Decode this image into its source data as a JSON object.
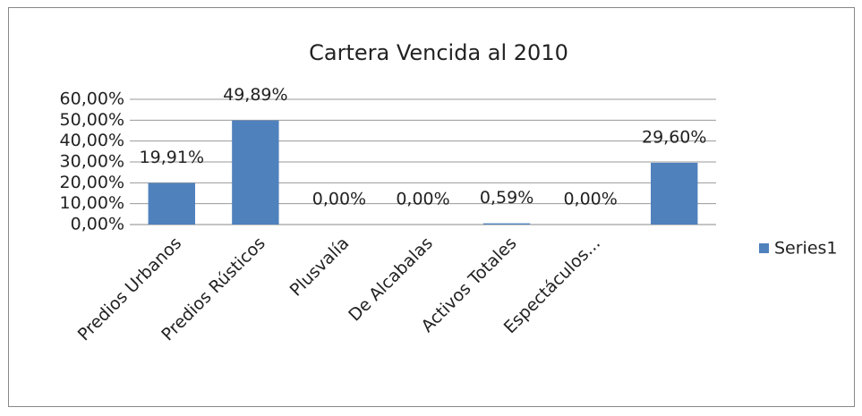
{
  "chart_data": {
    "type": "bar",
    "title": "Cartera Vencida al 2010",
    "categories": [
      "Predios Urbanos",
      "Predios Rústicos",
      "Plusvalía",
      "De Alcabalas",
      "Activos Totales",
      "Espectáculos...",
      null
    ],
    "series": [
      {
        "name": "Series1",
        "color": "#4f81bd",
        "values": [
          19.91,
          49.89,
          0,
          0,
          0.59,
          0,
          29.6
        ],
        "value_labels": [
          "19,91%",
          "49,89%",
          "0,00%",
          "0,00%",
          "0,59%",
          "0,00%",
          "29,60%"
        ]
      }
    ],
    "ylim": [
      0,
      60
    ],
    "yticks": [
      {
        "value": 0,
        "label": "0,00%"
      },
      {
        "value": 10,
        "label": "10,00%"
      },
      {
        "value": 20,
        "label": "20,00%"
      },
      {
        "value": 30,
        "label": "30,00%"
      },
      {
        "value": 40,
        "label": "40,00%"
      },
      {
        "value": 50,
        "label": "50,00%"
      },
      {
        "value": 60,
        "label": "60,00%"
      }
    ],
    "grid": true,
    "legend": "right"
  }
}
